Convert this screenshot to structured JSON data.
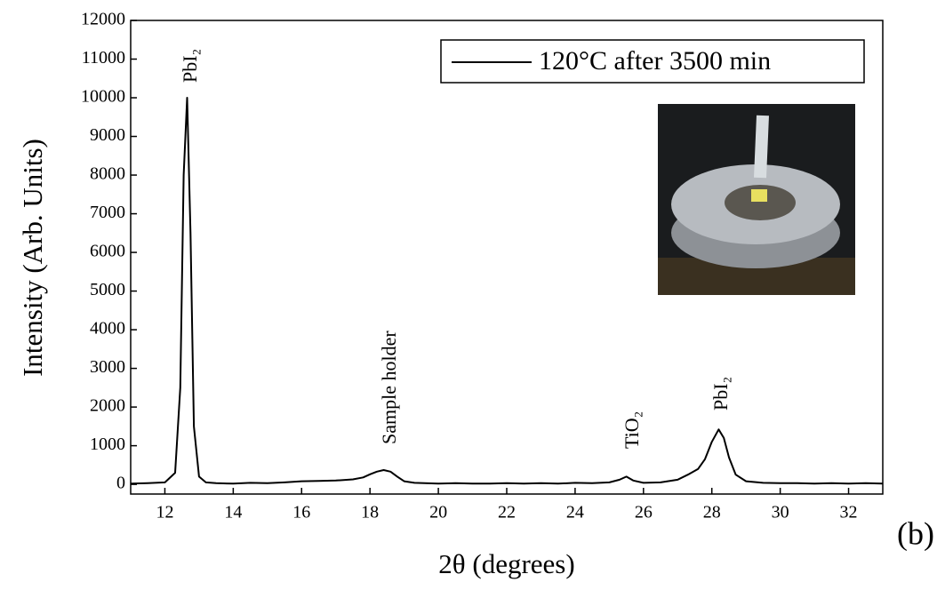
{
  "chart_data": {
    "type": "line",
    "x_label": "2θ (degrees)",
    "y_label": "Intensity (Arb. Units)",
    "panel_label": "(b)",
    "xlim": [
      11,
      33
    ],
    "ylim": [
      -250,
      12000
    ],
    "xticks": [
      12,
      14,
      16,
      18,
      20,
      22,
      24,
      26,
      28,
      30,
      32
    ],
    "yticks": [
      0,
      1000,
      2000,
      3000,
      4000,
      5000,
      6000,
      7000,
      8000,
      9000,
      10000,
      11000,
      12000
    ],
    "grid": false,
    "legend_position": "upper right",
    "series": [
      {
        "name": "120°C after 3500 min",
        "color": "#000000",
        "x": [
          11,
          11.5,
          12,
          12.3,
          12.45,
          12.55,
          12.65,
          12.75,
          12.85,
          13.0,
          13.2,
          13.5,
          14,
          14.5,
          15,
          15.5,
          16,
          16.5,
          17,
          17.5,
          17.8,
          18.0,
          18.2,
          18.4,
          18.6,
          18.8,
          19.0,
          19.3,
          19.6,
          20,
          20.5,
          21,
          21.5,
          22,
          22.5,
          23,
          23.5,
          24,
          24.5,
          25,
          25.3,
          25.5,
          25.7,
          26,
          26.5,
          27,
          27.3,
          27.6,
          27.8,
          28.0,
          28.2,
          28.35,
          28.5,
          28.7,
          29,
          29.5,
          30,
          30.5,
          31,
          31.5,
          32,
          32.5,
          33
        ],
        "values": [
          20,
          30,
          50,
          300,
          2500,
          8000,
          10000,
          6500,
          1500,
          200,
          50,
          30,
          20,
          40,
          30,
          50,
          80,
          90,
          100,
          130,
          180,
          260,
          330,
          370,
          330,
          200,
          80,
          40,
          30,
          20,
          30,
          20,
          20,
          30,
          20,
          30,
          20,
          40,
          30,
          50,
          120,
          200,
          100,
          40,
          50,
          120,
          250,
          400,
          650,
          1100,
          1420,
          1200,
          700,
          250,
          80,
          40,
          30,
          30,
          20,
          30,
          20,
          30,
          20
        ]
      }
    ],
    "annotations": [
      {
        "text": "PbI₂"
      },
      {
        "text": "Sample holder"
      },
      {
        "text": "TiO₂"
      },
      {
        "text": "PbI₂"
      }
    ]
  }
}
